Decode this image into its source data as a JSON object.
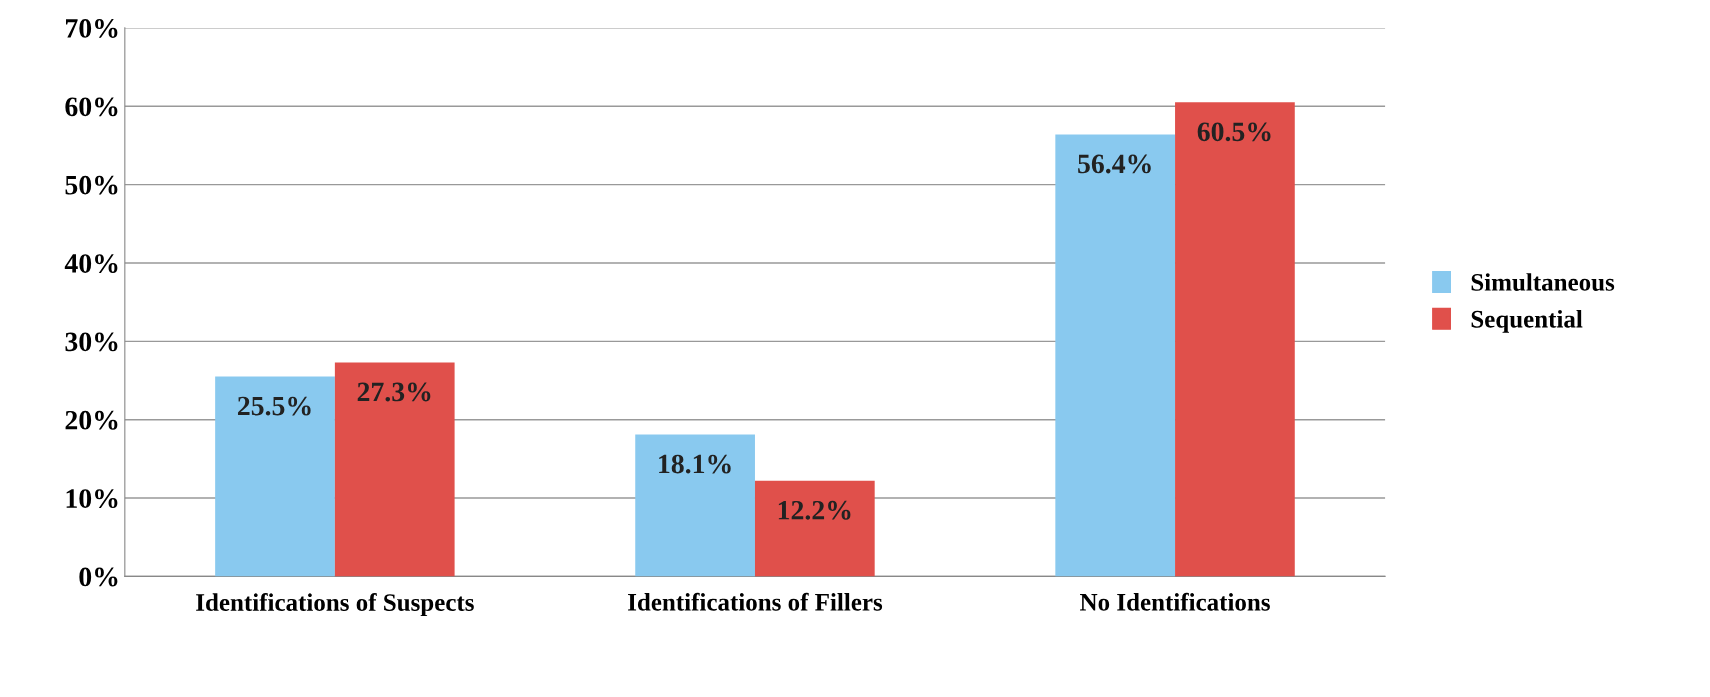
{
  "chart_data": {
    "type": "bar",
    "categories": [
      "Identifications of Suspects",
      "Identifications of Fillers",
      "No Identifications"
    ],
    "series": [
      {
        "name": "Simultaneous",
        "color": "#89c9ef",
        "values": [
          25.5,
          18.1,
          56.4
        ],
        "value_labels": [
          "25.5%",
          "18.1%",
          "56.4%"
        ]
      },
      {
        "name": "Sequential",
        "color": "#e0504b",
        "values": [
          27.3,
          12.2,
          60.5
        ],
        "value_labels": [
          "27.3%",
          "12.2%",
          "60.5%"
        ]
      }
    ],
    "ylim": [
      0,
      70
    ],
    "yticks": [
      {
        "value": 0,
        "label": "0%"
      },
      {
        "value": 10,
        "label": "10%"
      },
      {
        "value": 20,
        "label": "20%"
      },
      {
        "value": 30,
        "label": "30%"
      },
      {
        "value": 40,
        "label": "40%"
      },
      {
        "value": 50,
        "label": "50%"
      },
      {
        "value": 60,
        "label": "60%"
      },
      {
        "value": 70,
        "label": "70%"
      }
    ],
    "grid": "y",
    "legend": "right"
  }
}
